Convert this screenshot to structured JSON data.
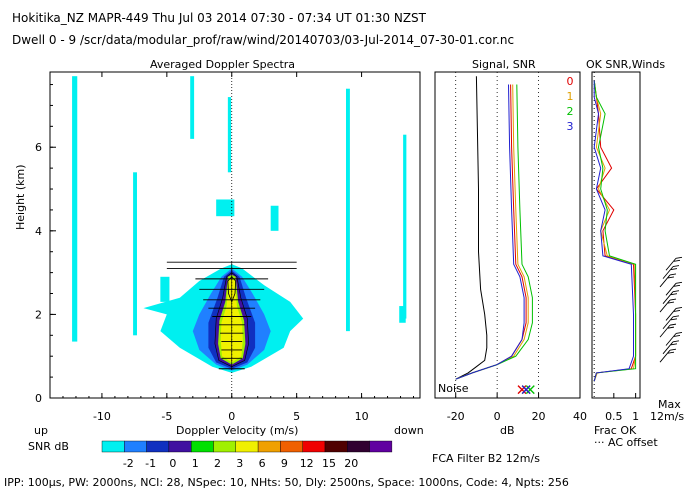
{
  "header": {
    "line1": "Hokitika_NZ   MAPR-449   Thu Jul 03 2014 07:30 - 07:34 UT 01:30 NZST",
    "line2": "Dwell  0 - 9   /scr/data/modular_prof/raw/wind/20140703/03-Jul-2014_07-30-01.cor.nc"
  },
  "footer": {
    "params": "IPP: 100µs,  PW: 2000ns,  NCI: 28,  NSpec: 10, NHts: 50,  Dly: 2500ns,  Space: 1000ns,  Code: 4,  Npts: 256",
    "filter": "FCA Filter B2 12m/s"
  },
  "chart_data": [
    {
      "type": "heatmap",
      "title": "Averaged Doppler Spectra",
      "xlabel": "Doppler Velocity (m/s)",
      "ylabel": "Height (km)",
      "xlim": [
        -14,
        14.5
      ],
      "ylim": [
        0,
        7.8
      ],
      "xticks": [
        -10,
        -5,
        0,
        5,
        10
      ],
      "yticks": [
        0,
        2,
        4,
        6
      ],
      "dir_left": "up",
      "dir_right": "down",
      "colorbar": {
        "label": "SNR dB",
        "ticks": [
          "-2",
          "-1",
          "0",
          "1",
          "2",
          "3",
          "6",
          "9",
          "12",
          "15",
          "20"
        ],
        "colors": [
          "#00f0f0",
          "#2080ff",
          "#1030c0",
          "#4010a0",
          "#00e000",
          "#a0f000",
          "#f0f000",
          "#f0a000",
          "#f06000",
          "#f00000",
          "#500000",
          "#300030",
          "#6000a0"
        ]
      },
      "wind_bar_heights_km": [
        0.7,
        0.95,
        1.15,
        1.35,
        1.55,
        1.75,
        1.95,
        2.15,
        2.35,
        2.6,
        2.85,
        3.1,
        3.25
      ],
      "wind_bar_halfwidths_ms": [
        1.0,
        0.8,
        0.8,
        0.8,
        0.9,
        1.0,
        1.5,
        1.8,
        2.2,
        2.5,
        2.8,
        5.0,
        5.0
      ]
    },
    {
      "type": "line",
      "title": "Signal, SNR",
      "xlabel": "dB",
      "xlim": [
        -30,
        40
      ],
      "ylim": [
        0,
        7.8
      ],
      "xticks": [
        -20,
        0,
        20,
        40
      ],
      "noise_label": "Noise",
      "series": [
        {
          "name": "noise",
          "color": "#000000",
          "x": [
            -20,
            -18,
            -14,
            -10,
            -6,
            -5,
            -5,
            -6,
            -8,
            -9,
            -9,
            -10
          ],
          "y": [
            0.45,
            0.5,
            0.6,
            0.75,
            0.9,
            1.2,
            1.5,
            2.0,
            2.6,
            3.5,
            5.0,
            7.7
          ]
        },
        {
          "name": "signal 0",
          "color": "#e00000",
          "x": [
            -20,
            -12,
            0,
            7,
            12,
            14,
            14,
            12,
            9,
            8,
            7,
            6.5
          ],
          "y": [
            0.45,
            0.6,
            0.8,
            1.0,
            1.4,
            1.8,
            2.4,
            2.9,
            3.2,
            4.5,
            6.0,
            7.5
          ]
        },
        {
          "name": "signal 1",
          "color": "#e0a000",
          "x": [
            -20,
            -12,
            0,
            8,
            13,
            15,
            15,
            13,
            10,
            9,
            8,
            7.5
          ],
          "y": [
            0.45,
            0.6,
            0.8,
            1.0,
            1.4,
            1.8,
            2.4,
            2.9,
            3.2,
            4.5,
            6.0,
            7.5
          ]
        },
        {
          "name": "signal 2",
          "color": "#00c000",
          "x": [
            -20,
            -12,
            0,
            9,
            15,
            17,
            17,
            15,
            12,
            11,
            10,
            9.5
          ],
          "y": [
            0.45,
            0.6,
            0.8,
            1.0,
            1.4,
            1.8,
            2.4,
            2.9,
            3.2,
            4.5,
            6.0,
            7.5
          ]
        },
        {
          "name": "signal 3",
          "color": "#2020d0",
          "x": [
            -20,
            -12,
            0,
            7,
            12,
            13,
            13,
            11,
            8,
            7,
            6,
            5.5
          ],
          "y": [
            0.45,
            0.6,
            0.8,
            1.0,
            1.4,
            1.8,
            2.4,
            2.9,
            3.2,
            4.5,
            6.0,
            7.5
          ]
        }
      ],
      "noise_markers": [
        {
          "x": 12,
          "color": "#e00000"
        },
        {
          "x": 14,
          "color": "#e0a000"
        },
        {
          "x": 16,
          "color": "#00c000"
        },
        {
          "x": 14,
          "color": "#2020d0"
        }
      ]
    },
    {
      "type": "line",
      "title": "OK SNR,Winds",
      "xlabel": "Frac OK",
      "xlim": [
        0,
        1.1
      ],
      "ylim": [
        0,
        7.8
      ],
      "xticks": [
        "0.5",
        "1"
      ],
      "note": "AC offset",
      "max_label": "Max",
      "max_value": "12m/s",
      "legend": [
        {
          "label": "0",
          "color": "#e00000"
        },
        {
          "label": "1",
          "color": "#e0a000"
        },
        {
          "label": "2",
          "color": "#00c000"
        },
        {
          "label": "3",
          "color": "#2020d0"
        }
      ],
      "series": [
        {
          "name": "0",
          "color": "#e00000",
          "x": [
            0.05,
            0.1,
            0.9,
            1.0,
            1.0,
            0.95,
            0.3,
            0.25,
            0.5,
            0.1,
            0.45,
            0.2,
            0.15,
            0.1,
            0.05
          ],
          "y": [
            0.4,
            0.6,
            0.7,
            1.0,
            2.0,
            3.2,
            3.4,
            4.0,
            4.5,
            5.0,
            5.5,
            6.0,
            6.8,
            7.2,
            7.6
          ]
        },
        {
          "name": "1",
          "color": "#e0a000",
          "x": [
            0.05,
            0.12,
            0.95,
            1.0,
            1.0,
            0.98,
            0.35,
            0.2,
            0.4,
            0.15,
            0.3,
            0.1,
            0.2,
            0.1,
            0.05
          ],
          "y": [
            0.4,
            0.6,
            0.7,
            1.0,
            2.0,
            3.2,
            3.4,
            4.0,
            4.5,
            5.0,
            5.5,
            6.0,
            6.8,
            7.2,
            7.6
          ]
        },
        {
          "name": "2",
          "color": "#00c000",
          "x": [
            0.05,
            0.1,
            1.0,
            1.0,
            1.0,
            1.0,
            0.4,
            0.3,
            0.35,
            0.2,
            0.25,
            0.15,
            0.3,
            0.1,
            0.05
          ],
          "y": [
            0.4,
            0.6,
            0.7,
            1.0,
            2.0,
            3.2,
            3.4,
            4.0,
            4.5,
            5.0,
            5.5,
            6.0,
            6.8,
            7.2,
            7.6
          ]
        },
        {
          "name": "3",
          "color": "#2020d0",
          "x": [
            0.05,
            0.1,
            0.85,
            0.95,
            0.95,
            0.9,
            0.25,
            0.2,
            0.3,
            0.1,
            0.2,
            0.05,
            0.15,
            0.05,
            0.05
          ],
          "y": [
            0.4,
            0.6,
            0.7,
            1.0,
            2.0,
            3.2,
            3.4,
            4.0,
            4.5,
            5.0,
            5.5,
            6.0,
            6.8,
            7.2,
            7.6
          ]
        }
      ],
      "wind_barb_heights_km": [
        1.0,
        1.2,
        1.4,
        1.6,
        1.8,
        2.0,
        2.2,
        2.4,
        2.6,
        2.8,
        3.0,
        3.2
      ]
    }
  ]
}
